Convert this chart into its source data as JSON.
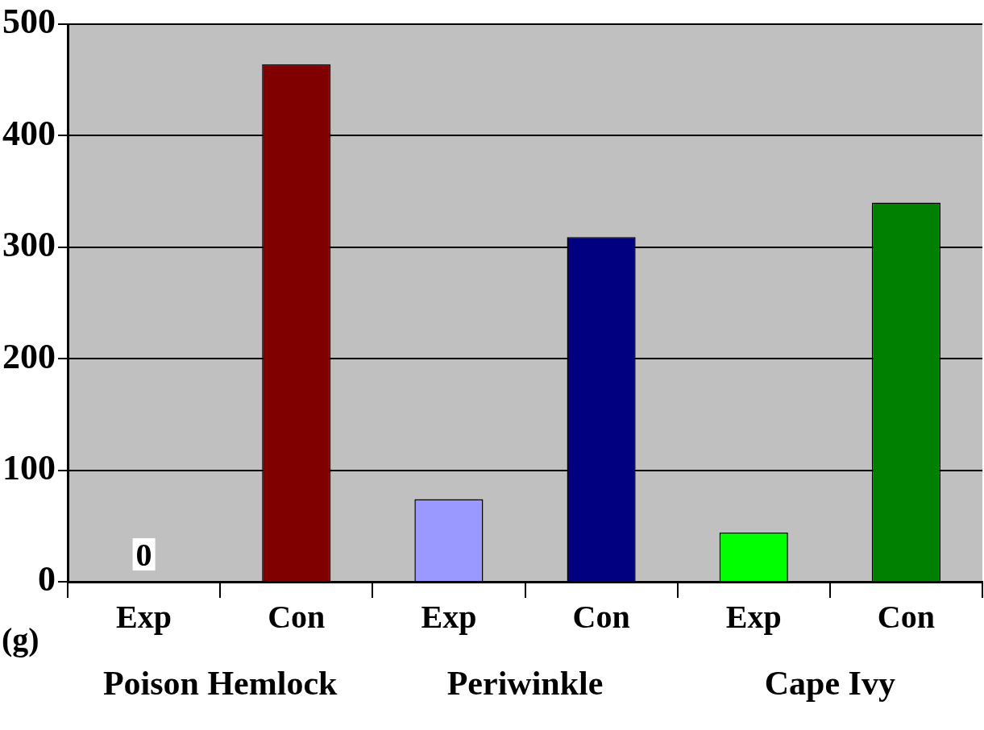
{
  "chart_data": {
    "type": "bar",
    "ylabel": "(g)",
    "categories": [
      "Exp",
      "Con",
      "Exp",
      "Con",
      "Exp",
      "Con"
    ],
    "values": [
      0,
      464,
      74,
      309,
      44,
      340
    ],
    "colors": [
      "#800000",
      "#800000",
      "#9999ff",
      "#000080",
      "#00ff00",
      "#008000"
    ],
    "value_labels": [
      "0",
      null,
      null,
      null,
      null,
      null
    ],
    "annotations": [
      "Poison Hemlock",
      "Periwinkle",
      "Cape Ivy"
    ],
    "ylim": [
      0,
      500
    ],
    "yticks": [
      0,
      100,
      200,
      300,
      400,
      500
    ],
    "grid": "y",
    "legend": false
  }
}
